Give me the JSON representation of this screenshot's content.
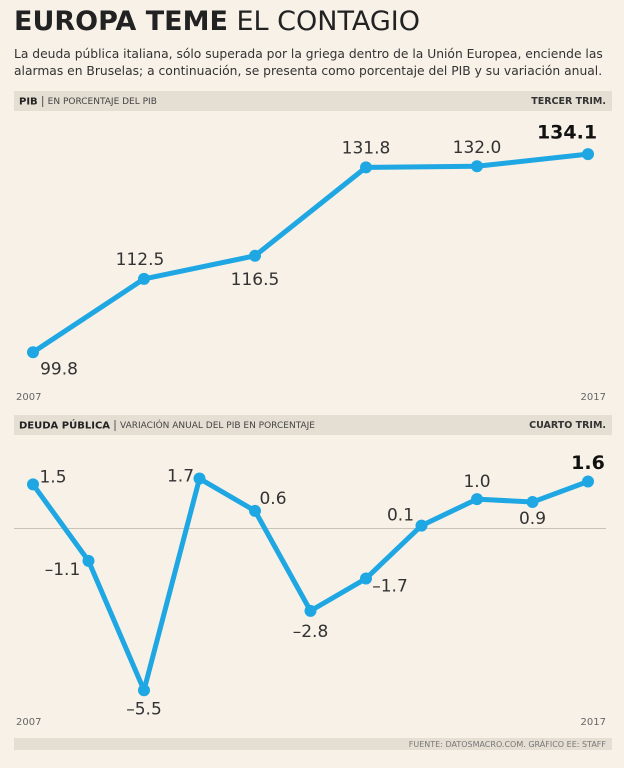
{
  "title_bold": "EUROPA TEME",
  "title_light": "EL CONTAGIO",
  "subtitle": "La deuda pública italiana, sólo superada por la griega dentro de la Unión Europea, enciende las alarmas en Bruselas; a continuación, se presenta como porcentaje del PIB y su variación anual.",
  "source": "FUENTE: DATOSMACRO.COM. GRÁFICO EE: STAFF",
  "chart_data": [
    {
      "type": "line",
      "header": "PIB",
      "subheader": "EN PORCENTAJE DEL PIB",
      "period": "TERCER TRIM.",
      "categories": [
        "2007",
        null,
        null,
        null,
        null,
        "2017"
      ],
      "values": [
        99.8,
        112.5,
        116.5,
        131.8,
        132.0,
        134.1
      ],
      "value_labels": [
        "99.8",
        "112.5",
        "116.5",
        "131.8",
        "132.0",
        "134.1"
      ],
      "color": "#1fa7e3",
      "ylim": [
        95,
        140
      ]
    },
    {
      "type": "line",
      "header": "DEUDA PÚBLICA",
      "subheader": "VARIACIÓN ANUAL DEL PIB EN PORCENTAJE",
      "period": "CUARTO TRIM.",
      "categories": [
        "2007",
        null,
        null,
        null,
        null,
        null,
        null,
        null,
        null,
        null,
        "2017"
      ],
      "values": [
        1.5,
        -1.1,
        -5.5,
        1.7,
        0.6,
        -2.8,
        -1.7,
        0.1,
        1.0,
        0.9,
        1.6
      ],
      "value_labels": [
        "1.5",
        "–1.1",
        "–5.5",
        "1.7",
        "0.6",
        "–2.8",
        "–1.7",
        "0.1",
        "1.0",
        "0.9",
        "1.6"
      ],
      "color": "#1fa7e3",
      "ylim": [
        -6,
        2.5
      ]
    }
  ]
}
